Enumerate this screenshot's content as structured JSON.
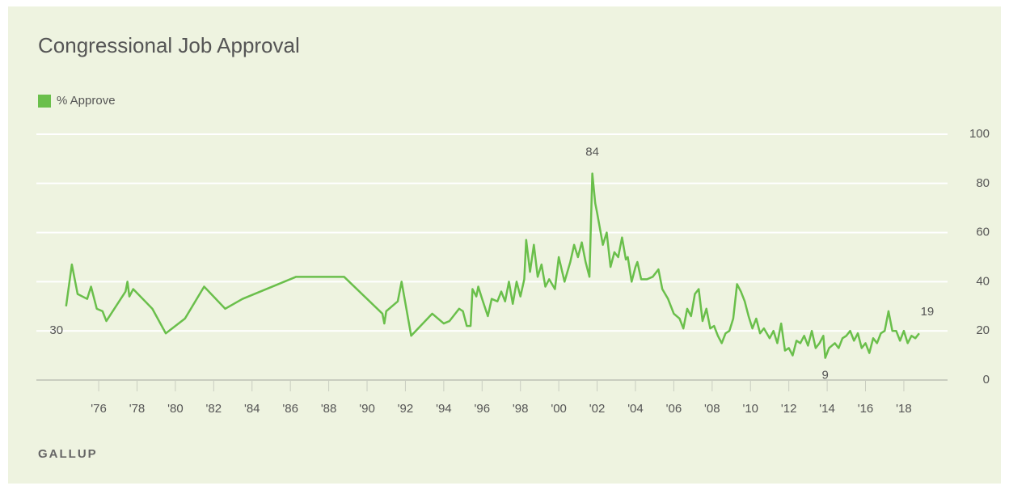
{
  "chart_data": {
    "type": "line",
    "title": "Congressional Job Approval",
    "source": "GALLUP",
    "x": [
      1974.3,
      1974.6,
      1974.9,
      1975.4,
      1975.6,
      1975.9,
      1976.2,
      1976.4,
      1977.4,
      1977.5,
      1977.6,
      1977.8,
      1978.8,
      1979.5,
      1980.5,
      1981.5,
      1982.6,
      1983.5,
      1986.3,
      1988.8,
      1990.8,
      1990.9,
      1991.0,
      1991.6,
      1991.8,
      1992.3,
      1993.4,
      1994.0,
      1994.3,
      1994.8,
      1995.0,
      1995.2,
      1995.4,
      1995.5,
      1995.7,
      1995.8,
      1996.0,
      1996.3,
      1996.5,
      1996.8,
      1997.0,
      1997.2,
      1997.4,
      1997.6,
      1997.8,
      1998.0,
      1998.2,
      1998.3,
      1998.5,
      1998.7,
      1998.9,
      1999.1,
      1999.3,
      1999.5,
      1999.8,
      2000.0,
      2000.3,
      2000.6,
      2000.8,
      2001.0,
      2001.2,
      2001.4,
      2001.6,
      2001.75,
      2001.9,
      2002.0,
      2002.3,
      2002.5,
      2002.7,
      2002.9,
      2003.1,
      2003.3,
      2003.5,
      2003.6,
      2003.8,
      2004.0,
      2004.1,
      2004.3,
      2004.6,
      2004.9,
      2005.2,
      2005.4,
      2005.7,
      2006.0,
      2006.3,
      2006.5,
      2006.7,
      2006.9,
      2007.1,
      2007.3,
      2007.5,
      2007.7,
      2007.9,
      2008.1,
      2008.3,
      2008.5,
      2008.7,
      2008.9,
      2009.1,
      2009.3,
      2009.5,
      2009.7,
      2009.9,
      2010.1,
      2010.3,
      2010.5,
      2010.7,
      2011.0,
      2011.2,
      2011.4,
      2011.6,
      2011.8,
      2012.0,
      2012.2,
      2012.4,
      2012.6,
      2012.8,
      2013.0,
      2013.2,
      2013.4,
      2013.6,
      2013.8,
      2013.9,
      2014.1,
      2014.4,
      2014.6,
      2014.8,
      2015.0,
      2015.2,
      2015.4,
      2015.6,
      2015.8,
      2016.0,
      2016.2,
      2016.4,
      2016.6,
      2016.8,
      2017.0,
      2017.2,
      2017.4,
      2017.6,
      2017.8,
      2018.0,
      2018.2,
      2018.4,
      2018.6,
      2018.8
    ],
    "series": [
      {
        "name": "% Approve",
        "color": "#6abf4b",
        "values": [
          30,
          47,
          35,
          33,
          38,
          29,
          28,
          24,
          36,
          40,
          34,
          37,
          29,
          19,
          25,
          38,
          29,
          33,
          42,
          42,
          27,
          23,
          28,
          32,
          40,
          18,
          27,
          23,
          24,
          29,
          28,
          22,
          22,
          37,
          34,
          38,
          33,
          26,
          33,
          32,
          36,
          32,
          40,
          31,
          40,
          34,
          41,
          57,
          44,
          55,
          42,
          47,
          38,
          41,
          37,
          50,
          40,
          48,
          55,
          50,
          56,
          48,
          42,
          84,
          72,
          68,
          55,
          60,
          46,
          52,
          50,
          58,
          49,
          50,
          40,
          46,
          48,
          41,
          41,
          42,
          45,
          37,
          33,
          27,
          25,
          21,
          29,
          26,
          35,
          37,
          24,
          29,
          21,
          22,
          18,
          15,
          19,
          20,
          25,
          39,
          36,
          32,
          26,
          21,
          25,
          19,
          21,
          17,
          20,
          15,
          23,
          12,
          13,
          10,
          16,
          15,
          18,
          14,
          20,
          13,
          15,
          18,
          9,
          13,
          15,
          13,
          17,
          18,
          20,
          16,
          19,
          13,
          15,
          11,
          17,
          15,
          19,
          20,
          28,
          20,
          20,
          16,
          20,
          15,
          18,
          17,
          19
        ]
      }
    ],
    "xlim": [
      1972.75,
      2020.28
    ],
    "ylim": [
      0,
      100
    ],
    "xticks": [
      {
        "value": 1976,
        "label": "'76"
      },
      {
        "value": 1978,
        "label": "'78"
      },
      {
        "value": 1980,
        "label": "'80"
      },
      {
        "value": 1982,
        "label": "'82"
      },
      {
        "value": 1984,
        "label": "'84"
      },
      {
        "value": 1986,
        "label": "'86"
      },
      {
        "value": 1988,
        "label": "'88"
      },
      {
        "value": 1990,
        "label": "'90"
      },
      {
        "value": 1992,
        "label": "'92"
      },
      {
        "value": 1994,
        "label": "'94"
      },
      {
        "value": 1996,
        "label": "'96"
      },
      {
        "value": 1998,
        "label": "'98"
      },
      {
        "value": 2000,
        "label": "'00"
      },
      {
        "value": 2002,
        "label": "'02"
      },
      {
        "value": 2004,
        "label": "'04"
      },
      {
        "value": 2006,
        "label": "'06"
      },
      {
        "value": 2008,
        "label": "'08"
      },
      {
        "value": 2010,
        "label": "'10"
      },
      {
        "value": 2012,
        "label": "'12"
      },
      {
        "value": 2014,
        "label": "'14"
      },
      {
        "value": 2016,
        "label": "'16"
      },
      {
        "value": 2018,
        "label": "'18"
      }
    ],
    "yticks": [
      0,
      20,
      40,
      60,
      80,
      100
    ],
    "grid": true,
    "legend": "top-left",
    "label_extremes": true
  }
}
